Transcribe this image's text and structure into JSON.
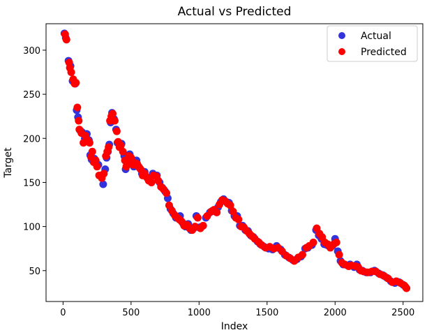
{
  "chart_data": {
    "type": "scatter",
    "title": "Actual vs Predicted",
    "xlabel": "Index",
    "ylabel": "Target",
    "xlim": [
      -125,
      2645
    ],
    "ylim": [
      15,
      330
    ],
    "xticks": [
      0,
      500,
      1000,
      1500,
      2000,
      2500
    ],
    "yticks": [
      50,
      100,
      150,
      200,
      250,
      300
    ],
    "legend_position": "top-right",
    "grid": false,
    "series": [
      {
        "name": "Actual",
        "color": "#3333dd",
        "points": [
          [
            10,
            319
          ],
          [
            20,
            314
          ],
          [
            40,
            288
          ],
          [
            55,
            282
          ],
          [
            70,
            265
          ],
          [
            90,
            262
          ],
          [
            100,
            232
          ],
          [
            110,
            224
          ],
          [
            125,
            209
          ],
          [
            140,
            207
          ],
          [
            160,
            200
          ],
          [
            175,
            205
          ],
          [
            190,
            198
          ],
          [
            200,
            181
          ],
          [
            210,
            176
          ],
          [
            230,
            177
          ],
          [
            245,
            172
          ],
          [
            260,
            170
          ],
          [
            280,
            157
          ],
          [
            295,
            148
          ],
          [
            310,
            165
          ],
          [
            320,
            178
          ],
          [
            330,
            185
          ],
          [
            340,
            193
          ],
          [
            350,
            218
          ],
          [
            360,
            229
          ],
          [
            375,
            222
          ],
          [
            390,
            210
          ],
          [
            400,
            195
          ],
          [
            420,
            190
          ],
          [
            430,
            194
          ],
          [
            450,
            180
          ],
          [
            460,
            165
          ],
          [
            470,
            170
          ],
          [
            490,
            182
          ],
          [
            505,
            175
          ],
          [
            520,
            168
          ],
          [
            540,
            175
          ],
          [
            560,
            167
          ],
          [
            580,
            160
          ],
          [
            600,
            162
          ],
          [
            620,
            155
          ],
          [
            640,
            152
          ],
          [
            660,
            160
          ],
          [
            690,
            158
          ],
          [
            710,
            150
          ],
          [
            730,
            144
          ],
          [
            750,
            140
          ],
          [
            770,
            132
          ],
          [
            790,
            120
          ],
          [
            810,
            115
          ],
          [
            830,
            110
          ],
          [
            860,
            112
          ],
          [
            880,
            104
          ],
          [
            900,
            100
          ],
          [
            920,
            103
          ],
          [
            940,
            96
          ],
          [
            960,
            98
          ],
          [
            980,
            112
          ],
          [
            1000,
            99
          ],
          [
            1020,
            100
          ],
          [
            1050,
            110
          ],
          [
            1080,
            116
          ],
          [
            1100,
            118
          ],
          [
            1120,
            117
          ],
          [
            1140,
            122
          ],
          [
            1160,
            128
          ],
          [
            1180,
            131
          ],
          [
            1200,
            128
          ],
          [
            1220,
            127
          ],
          [
            1240,
            118
          ],
          [
            1260,
            112
          ],
          [
            1280,
            112
          ],
          [
            1300,
            101
          ],
          [
            1320,
            101
          ],
          [
            1340,
            96
          ],
          [
            1360,
            95
          ],
          [
            1380,
            90
          ],
          [
            1400,
            88
          ],
          [
            1430,
            83
          ],
          [
            1450,
            80
          ],
          [
            1480,
            77
          ],
          [
            1510,
            75
          ],
          [
            1540,
            74
          ],
          [
            1570,
            78
          ],
          [
            1600,
            74
          ],
          [
            1630,
            68
          ],
          [
            1660,
            65
          ],
          [
            1690,
            62
          ],
          [
            1720,
            63
          ],
          [
            1750,
            66
          ],
          [
            1780,
            75
          ],
          [
            1800,
            76
          ],
          [
            1830,
            79
          ],
          [
            1860,
            96
          ],
          [
            1880,
            90
          ],
          [
            1900,
            86
          ],
          [
            1920,
            80
          ],
          [
            1940,
            79
          ],
          [
            1960,
            77
          ],
          [
            1980,
            78
          ],
          [
            2000,
            86
          ],
          [
            2020,
            72
          ],
          [
            2040,
            61
          ],
          [
            2060,
            57
          ],
          [
            2090,
            56
          ],
          [
            2110,
            57
          ],
          [
            2140,
            54
          ],
          [
            2160,
            57
          ],
          [
            2180,
            51
          ],
          [
            2200,
            50
          ],
          [
            2230,
            48
          ],
          [
            2260,
            48
          ],
          [
            2290,
            50
          ],
          [
            2320,
            47
          ],
          [
            2350,
            45
          ],
          [
            2380,
            42
          ],
          [
            2410,
            38
          ],
          [
            2440,
            36
          ],
          [
            2470,
            37
          ],
          [
            2500,
            34
          ],
          [
            2520,
            31
          ]
        ]
      },
      {
        "name": "Predicted",
        "color": "#ff0000",
        "points": [
          [
            15,
            318
          ],
          [
            25,
            312
          ],
          [
            45,
            286
          ],
          [
            50,
            280
          ],
          [
            60,
            275
          ],
          [
            75,
            267
          ],
          [
            85,
            262
          ],
          [
            95,
            263
          ],
          [
            105,
            235
          ],
          [
            115,
            220
          ],
          [
            120,
            210
          ],
          [
            135,
            206
          ],
          [
            150,
            195
          ],
          [
            165,
            203
          ],
          [
            180,
            198
          ],
          [
            195,
            195
          ],
          [
            205,
            179
          ],
          [
            215,
            185
          ],
          [
            225,
            173
          ],
          [
            240,
            175
          ],
          [
            250,
            168
          ],
          [
            265,
            158
          ],
          [
            285,
            155
          ],
          [
            300,
            160
          ],
          [
            315,
            180
          ],
          [
            325,
            185
          ],
          [
            335,
            190
          ],
          [
            345,
            220
          ],
          [
            355,
            225
          ],
          [
            365,
            228
          ],
          [
            380,
            220
          ],
          [
            395,
            208
          ],
          [
            405,
            196
          ],
          [
            415,
            190
          ],
          [
            425,
            192
          ],
          [
            440,
            185
          ],
          [
            455,
            175
          ],
          [
            465,
            168
          ],
          [
            475,
            174
          ],
          [
            485,
            180
          ],
          [
            500,
            178
          ],
          [
            515,
            170
          ],
          [
            530,
            172
          ],
          [
            545,
            171
          ],
          [
            555,
            168
          ],
          [
            570,
            165
          ],
          [
            585,
            158
          ],
          [
            600,
            160
          ],
          [
            615,
            156
          ],
          [
            630,
            152
          ],
          [
            650,
            150
          ],
          [
            665,
            158
          ],
          [
            685,
            157
          ],
          [
            700,
            152
          ],
          [
            720,
            145
          ],
          [
            740,
            142
          ],
          [
            760,
            138
          ],
          [
            780,
            124
          ],
          [
            800,
            118
          ],
          [
            820,
            113
          ],
          [
            840,
            110
          ],
          [
            855,
            108
          ],
          [
            870,
            106
          ],
          [
            890,
            101
          ],
          [
            910,
            102
          ],
          [
            930,
            98
          ],
          [
            950,
            96
          ],
          [
            970,
            100
          ],
          [
            990,
            110
          ],
          [
            1010,
            98
          ],
          [
            1030,
            101
          ],
          [
            1060,
            112
          ],
          [
            1090,
            117
          ],
          [
            1110,
            119
          ],
          [
            1130,
            116
          ],
          [
            1150,
            125
          ],
          [
            1170,
            130
          ],
          [
            1190,
            129
          ],
          [
            1210,
            126
          ],
          [
            1230,
            124
          ],
          [
            1250,
            117
          ],
          [
            1270,
            110
          ],
          [
            1290,
            108
          ],
          [
            1310,
            100
          ],
          [
            1330,
            99
          ],
          [
            1350,
            95
          ],
          [
            1370,
            92
          ],
          [
            1390,
            89
          ],
          [
            1410,
            86
          ],
          [
            1440,
            82
          ],
          [
            1460,
            79
          ],
          [
            1490,
            76
          ],
          [
            1520,
            77
          ],
          [
            1550,
            75
          ],
          [
            1580,
            76
          ],
          [
            1610,
            72
          ],
          [
            1640,
            67
          ],
          [
            1670,
            64
          ],
          [
            1700,
            61
          ],
          [
            1730,
            65
          ],
          [
            1760,
            68
          ],
          [
            1790,
            76
          ],
          [
            1810,
            78
          ],
          [
            1840,
            82
          ],
          [
            1865,
            98
          ],
          [
            1885,
            92
          ],
          [
            1905,
            88
          ],
          [
            1925,
            82
          ],
          [
            1945,
            80
          ],
          [
            1965,
            76
          ],
          [
            1990,
            80
          ],
          [
            2010,
            82
          ],
          [
            2030,
            68
          ],
          [
            2050,
            59
          ],
          [
            2070,
            57
          ],
          [
            2100,
            55
          ],
          [
            2120,
            56
          ],
          [
            2150,
            55
          ],
          [
            2170,
            54
          ],
          [
            2190,
            50
          ],
          [
            2210,
            49
          ],
          [
            2240,
            48
          ],
          [
            2270,
            49
          ],
          [
            2300,
            49
          ],
          [
            2330,
            46
          ],
          [
            2360,
            44
          ],
          [
            2390,
            41
          ],
          [
            2420,
            37
          ],
          [
            2450,
            38
          ],
          [
            2480,
            36
          ],
          [
            2510,
            33
          ],
          [
            2525,
            30
          ]
        ]
      }
    ]
  }
}
